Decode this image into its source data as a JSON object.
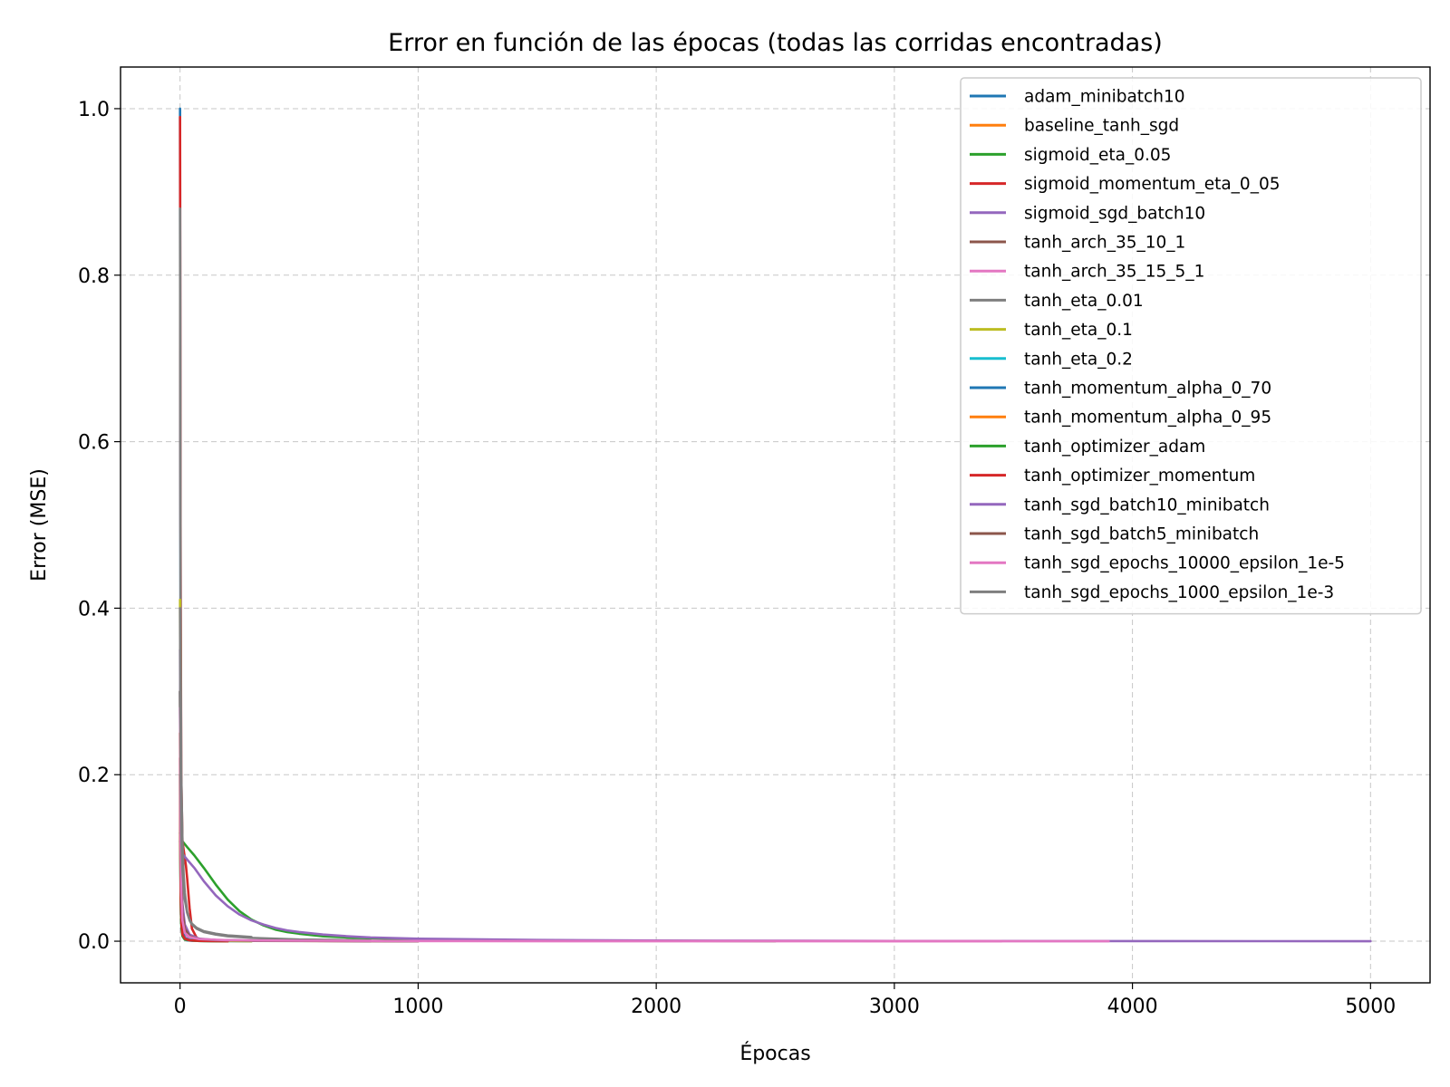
{
  "chart_data": {
    "type": "line",
    "title": "Error en función de las épocas (todas las corridas encontradas)",
    "xlabel": "Épocas",
    "ylabel": "Error (MSE)",
    "xlim": [
      -250,
      5250
    ],
    "ylim": [
      -0.05,
      1.05
    ],
    "xticks": [
      0,
      1000,
      2000,
      3000,
      4000,
      5000
    ],
    "xtick_labels": [
      "0",
      "1000",
      "2000",
      "3000",
      "4000",
      "5000"
    ],
    "yticks": [
      0.0,
      0.2,
      0.4,
      0.6,
      0.8,
      1.0
    ],
    "ytick_labels": [
      "0.0",
      "0.2",
      "0.4",
      "0.6",
      "0.8",
      "1.0"
    ],
    "grid": true,
    "legend_position": "top-right",
    "series": [
      {
        "name": "adam_minibatch10",
        "color": "#1f77b4",
        "x": [
          0,
          1,
          3,
          6,
          10,
          15,
          20,
          30,
          50,
          100,
          300
        ],
        "y": [
          1.0,
          0.6,
          0.2,
          0.05,
          0.01,
          0.004,
          0.002,
          0.001,
          0.0005,
          0.0002,
          0.0
        ]
      },
      {
        "name": "baseline_tanh_sgd",
        "color": "#ff7f0e",
        "x": [
          0,
          2,
          5,
          10,
          20,
          40,
          80,
          150,
          300,
          1000
        ],
        "y": [
          0.3,
          0.15,
          0.07,
          0.03,
          0.012,
          0.005,
          0.002,
          0.001,
          0.0005,
          0.0
        ]
      },
      {
        "name": "sigmoid_eta_0.05",
        "color": "#2ca02c",
        "x": [
          0,
          3,
          10,
          30,
          60,
          100,
          150,
          200,
          250,
          300,
          350,
          400,
          450,
          500,
          600,
          700,
          800,
          1000,
          1200,
          1500,
          2000,
          2500
        ],
        "y": [
          0.13,
          0.122,
          0.12,
          0.113,
          0.103,
          0.088,
          0.068,
          0.05,
          0.036,
          0.026,
          0.019,
          0.014,
          0.011,
          0.009,
          0.006,
          0.0045,
          0.0035,
          0.0022,
          0.0015,
          0.001,
          0.0005,
          0.0
        ]
      },
      {
        "name": "sigmoid_momentum_eta_0_05",
        "color": "#d62728",
        "x": [
          0,
          2,
          5,
          10,
          15,
          20,
          25,
          30,
          40,
          50,
          70,
          100,
          200
        ],
        "y": [
          0.99,
          0.5,
          0.2,
          0.12,
          0.11,
          0.1,
          0.09,
          0.075,
          0.04,
          0.015,
          0.004,
          0.001,
          0.0
        ]
      },
      {
        "name": "sigmoid_sgd_batch10",
        "color": "#9467bd",
        "x": [
          0,
          3,
          10,
          30,
          60,
          100,
          150,
          200,
          250,
          300,
          350,
          400,
          450,
          500,
          600,
          700,
          800,
          1000,
          1500,
          2000,
          3000,
          4000,
          5000
        ],
        "y": [
          0.12,
          0.11,
          0.105,
          0.098,
          0.088,
          0.072,
          0.055,
          0.042,
          0.032,
          0.025,
          0.02,
          0.016,
          0.013,
          0.011,
          0.008,
          0.006,
          0.0045,
          0.003,
          0.0015,
          0.0008,
          0.0003,
          0.0001,
          0.0
        ]
      },
      {
        "name": "tanh_arch_35_10_1",
        "color": "#8c564b",
        "x": [
          0,
          2,
          5,
          10,
          20,
          40,
          80,
          150,
          300,
          800
        ],
        "y": [
          0.25,
          0.12,
          0.06,
          0.025,
          0.01,
          0.004,
          0.002,
          0.001,
          0.0004,
          0.0
        ]
      },
      {
        "name": "tanh_arch_35_15_5_1",
        "color": "#e377c2",
        "x": [
          0,
          2,
          5,
          10,
          20,
          40,
          80,
          200,
          500,
          1000,
          2000,
          3000,
          3900
        ],
        "y": [
          0.3,
          0.12,
          0.05,
          0.02,
          0.008,
          0.004,
          0.002,
          0.001,
          0.0005,
          0.0003,
          0.0001,
          5e-05,
          0.0
        ]
      },
      {
        "name": "tanh_eta_0.01",
        "color": "#7f7f7f",
        "x": [
          0,
          2,
          5,
          10,
          15,
          20,
          30,
          40,
          50,
          70,
          100,
          150,
          200,
          300,
          500,
          800
        ],
        "y": [
          0.88,
          0.4,
          0.2,
          0.12,
          0.08,
          0.058,
          0.035,
          0.025,
          0.02,
          0.015,
          0.011,
          0.008,
          0.006,
          0.004,
          0.002,
          0.001
        ]
      },
      {
        "name": "tanh_eta_0.1",
        "color": "#bcbd22",
        "x": [
          0,
          1,
          2,
          4,
          8,
          15,
          30,
          60,
          100,
          300
        ],
        "y": [
          0.41,
          0.3,
          0.15,
          0.05,
          0.015,
          0.005,
          0.002,
          0.001,
          0.0005,
          0.0
        ]
      },
      {
        "name": "tanh_eta_0.2",
        "color": "#17becf",
        "x": [
          0,
          1,
          2,
          4,
          8,
          15,
          30,
          60,
          200
        ],
        "y": [
          0.3,
          0.2,
          0.08,
          0.03,
          0.01,
          0.004,
          0.0015,
          0.0005,
          0.0
        ]
      },
      {
        "name": "tanh_momentum_alpha_0_70",
        "color": "#1f77b4",
        "x": [
          0,
          1,
          3,
          6,
          10,
          20,
          40,
          80,
          200
        ],
        "y": [
          0.3,
          0.2,
          0.08,
          0.03,
          0.012,
          0.004,
          0.0015,
          0.0005,
          0.0
        ]
      },
      {
        "name": "tanh_momentum_alpha_0_95",
        "color": "#ff7f0e",
        "x": [
          0,
          1,
          3,
          6,
          10,
          20,
          40,
          80,
          200
        ],
        "y": [
          0.25,
          0.15,
          0.06,
          0.02,
          0.008,
          0.003,
          0.001,
          0.0004,
          0.0
        ]
      },
      {
        "name": "tanh_optimizer_adam",
        "color": "#2ca02c",
        "x": [
          0,
          1,
          3,
          6,
          10,
          20,
          40,
          80,
          200
        ],
        "y": [
          0.2,
          0.1,
          0.04,
          0.015,
          0.006,
          0.002,
          0.001,
          0.0003,
          0.0
        ]
      },
      {
        "name": "tanh_optimizer_momentum",
        "color": "#d62728",
        "x": [
          0,
          1,
          3,
          6,
          10,
          20,
          40,
          80,
          200
        ],
        "y": [
          0.22,
          0.12,
          0.05,
          0.02,
          0.008,
          0.003,
          0.001,
          0.0004,
          0.0
        ]
      },
      {
        "name": "tanh_sgd_batch10_minibatch",
        "color": "#9467bd",
        "x": [
          0,
          2,
          5,
          10,
          20,
          40,
          80,
          150,
          300,
          1000
        ],
        "y": [
          0.35,
          0.2,
          0.1,
          0.045,
          0.02,
          0.008,
          0.003,
          0.0015,
          0.0007,
          0.0
        ]
      },
      {
        "name": "tanh_sgd_batch5_minibatch",
        "color": "#8c564b",
        "x": [
          0,
          2,
          5,
          10,
          20,
          40,
          80,
          150,
          300,
          1000
        ],
        "y": [
          0.3,
          0.16,
          0.08,
          0.035,
          0.015,
          0.006,
          0.0025,
          0.0012,
          0.0006,
          0.0
        ]
      },
      {
        "name": "tanh_sgd_epochs_10000_epsilon_1e-5",
        "color": "#e377c2",
        "x": [
          0,
          2,
          5,
          10,
          20,
          40,
          80,
          200,
          500,
          1000,
          2000,
          3000,
          3450
        ],
        "y": [
          0.28,
          0.13,
          0.06,
          0.025,
          0.01,
          0.005,
          0.0025,
          0.0012,
          0.0006,
          0.0003,
          0.0001,
          3e-05,
          0.0
        ]
      },
      {
        "name": "tanh_sgd_epochs_1000_epsilon_1e-3",
        "color": "#7f7f7f",
        "x": [
          0,
          2,
          5,
          10,
          15,
          20,
          30,
          40,
          50,
          70,
          100,
          150,
          200,
          300
        ],
        "y": [
          0.4,
          0.22,
          0.13,
          0.085,
          0.065,
          0.05,
          0.034,
          0.026,
          0.021,
          0.016,
          0.012,
          0.009,
          0.007,
          0.005
        ]
      }
    ]
  }
}
